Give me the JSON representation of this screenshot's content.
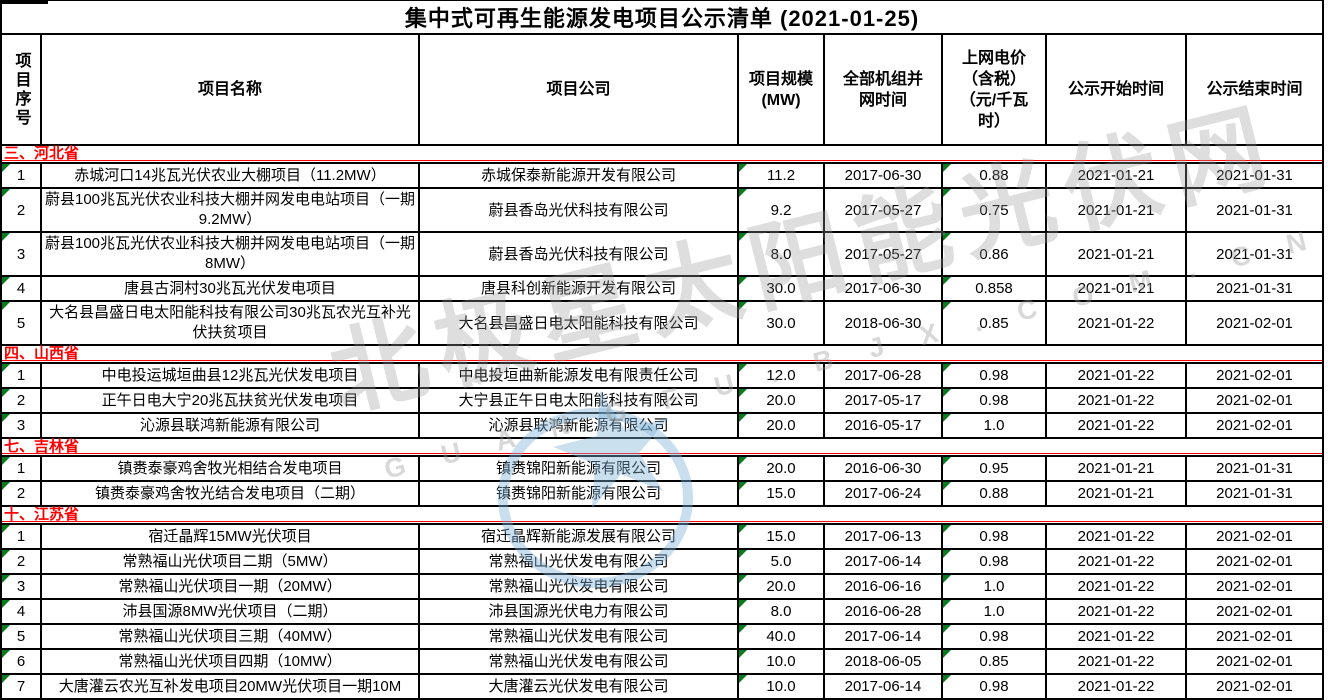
{
  "title": "集中式可再生能源发电项目公示清单 (2021-01-25)",
  "columns": [
    "项目序号",
    "项目名称",
    "项目公司",
    "项目规模\n(MW)",
    "全部机组并\n网时间",
    "上网电价\n（含税）\n（元/千瓦\n时）",
    "公示开始时间",
    "公示结束时间"
  ],
  "sections": [
    {
      "label": "三、河北省",
      "rows": [
        [
          "1",
          "赤城河口14兆瓦光伏农业大棚项目（11.2MW）",
          "赤城保泰新能源开发有限公司",
          "11.2",
          "2017-06-30",
          "0.88",
          "2021-01-21",
          "2021-01-31"
        ],
        [
          "2",
          "蔚县100兆瓦光伏农业科技大棚并网发电电站项目（一期9.2MW）",
          "蔚县香岛光伏科技有限公司",
          "9.2",
          "2017-05-27",
          "0.75",
          "2021-01-21",
          "2021-01-31"
        ],
        [
          "3",
          "蔚县100兆瓦光伏农业科技大棚并网发电电站项目（一期8MW）",
          "蔚县香岛光伏科技有限公司",
          "8.0",
          "2017-05-27",
          "0.86",
          "2021-01-21",
          "2021-01-31"
        ],
        [
          "4",
          "唐县古洞村30兆瓦光伏发电项目",
          "唐县科创新能源开发有限公司",
          "30.0",
          "2017-06-30",
          "0.858",
          "2021-01-21",
          "2021-01-31"
        ],
        [
          "5",
          "大名县昌盛日电太阳能科技有限公司30兆瓦农光互补光伏扶贫项目",
          "大名县昌盛日电太阳能科技有限公司",
          "30.0",
          "2018-06-30",
          "0.85",
          "2021-01-22",
          "2021-02-01"
        ]
      ]
    },
    {
      "label": "四、山西省",
      "rows": [
        [
          "1",
          "中电投运城垣曲县12兆瓦光伏发电项目",
          "中电投垣曲新能源发电有限责任公司",
          "12.0",
          "2017-06-28",
          "0.98",
          "2021-01-22",
          "2021-02-01"
        ],
        [
          "2",
          "正午日电大宁20兆瓦扶贫光伏发电项目",
          "大宁县正午日电太阳能科技有限公司",
          "20.0",
          "2017-05-17",
          "0.98",
          "2021-01-22",
          "2021-02-01"
        ],
        [
          "3",
          "沁源县联鸿新能源有限公司",
          "沁源县联鸿新能源有限公司",
          "20.0",
          "2016-05-17",
          "1.0",
          "2021-01-22",
          "2021-02-01"
        ]
      ]
    },
    {
      "label": "七、吉林省",
      "rows": [
        [
          "1",
          "镇赉泰豪鸡舍牧光相结合发电项目",
          "镇赉锦阳新能源有限公司",
          "20.0",
          "2016-06-30",
          "0.95",
          "2021-01-21",
          "2021-01-31"
        ],
        [
          "2",
          "镇赉泰豪鸡舍牧光结合发电项目（二期）",
          "镇赉锦阳新能源有限公司",
          "15.0",
          "2017-06-24",
          "0.88",
          "2021-01-21",
          "2021-01-31"
        ]
      ]
    },
    {
      "label": "十、江苏省",
      "rows": [
        [
          "1",
          "宿迁晶辉15MW光伏项目",
          "宿迁晶辉新能源发展有限公司",
          "15.0",
          "2017-06-13",
          "0.98",
          "2021-01-22",
          "2021-02-01"
        ],
        [
          "2",
          "常熟福山光伏项目二期（5MW）",
          "常熟福山光伏发电有限公司",
          "5.0",
          "2017-06-14",
          "0.98",
          "2021-01-22",
          "2021-02-01"
        ],
        [
          "3",
          "常熟福山光伏项目一期（20MW）",
          "常熟福山光伏发电有限公司",
          "20.0",
          "2016-06-16",
          "1.0",
          "2021-01-22",
          "2021-02-01"
        ],
        [
          "4",
          "沛县国源8MW光伏项目（二期）",
          "沛县国源光伏电力有限公司",
          "8.0",
          "2016-06-28",
          "1.0",
          "2021-01-22",
          "2021-02-01"
        ],
        [
          "5",
          "常熟福山光伏项目三期（40MW）",
          "常熟福山光伏发电有限公司",
          "40.0",
          "2017-06-14",
          "0.98",
          "2021-01-22",
          "2021-02-01"
        ],
        [
          "6",
          "常熟福山光伏项目四期（10MW）",
          "常熟福山光伏发电有限公司",
          "10.0",
          "2018-06-05",
          "0.85",
          "2021-01-22",
          "2021-02-01"
        ],
        [
          "7",
          "大唐灌云农光互补发电项目20MW光伏项目一期10M",
          "大唐灌云光伏发电有限公司",
          "10.0",
          "2017-06-14",
          "0.98",
          "2021-01-22",
          "2021-02-01"
        ]
      ]
    }
  ],
  "watermark": {
    "brand": "北极星太阳能光伏网",
    "url": "G U A N G F U . B J X . C O M . C N",
    "star_icon": "★"
  },
  "colors": {
    "sectionRed": "#ff0000",
    "triangleGreen": "#0a7a1e",
    "wmGray": "#9a9a9a",
    "wmBlue": "#7fb2d9",
    "borderBlack": "#000000"
  }
}
